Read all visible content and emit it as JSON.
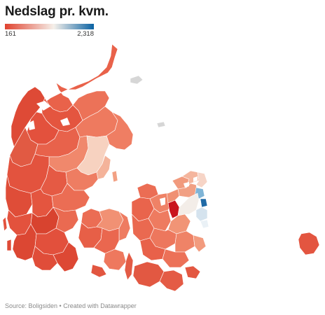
{
  "title": "Nedslag pr. kvm.",
  "legend": {
    "min_label": "161",
    "max_label": "2,318",
    "color_low": "#e0422f",
    "color_mid": "#f5f0ea",
    "color_high": "#0a62a3"
  },
  "footer": "Source: Boligsiden • Created with Datawrapper",
  "colors": {
    "lake": "#d6d6d6",
    "deep_red": "#c9141e",
    "light_blue": "#7fb4d6",
    "dark_blue": "#1f6aa6"
  }
}
